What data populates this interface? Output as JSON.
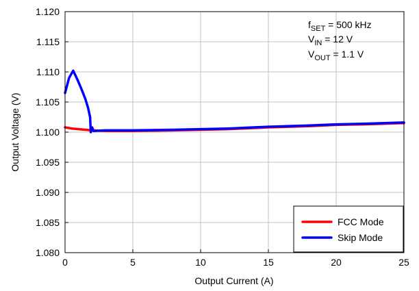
{
  "chart_data": {
    "type": "line",
    "xlabel": "Output Current (A)",
    "ylabel": "Output Voltage (V)",
    "xlim": [
      0,
      25
    ],
    "ylim": [
      1.08,
      1.12
    ],
    "x_ticks": [
      "0",
      "5",
      "10",
      "15",
      "20",
      "25"
    ],
    "y_ticks": [
      "1.080",
      "1.085",
      "1.090",
      "1.095",
      "1.100",
      "1.105",
      "1.110",
      "1.115",
      "1.120"
    ],
    "grid": true,
    "legend_position": "bottom-right",
    "annotation": {
      "line1": {
        "main": "f",
        "sub": "SET",
        "rest": " = 500 kHz"
      },
      "line2": {
        "main": "V",
        "sub": "IN",
        "rest": " = 12 V"
      },
      "line3": {
        "main": "V",
        "sub": "OUT",
        "rest": " = 1.1 V"
      }
    },
    "series": [
      {
        "name": "FCC Mode",
        "color": "#ff0000",
        "points": [
          [
            0,
            1.1008
          ],
          [
            0.5,
            1.1006
          ],
          [
            1.0,
            1.1005
          ],
          [
            1.5,
            1.1004
          ],
          [
            2.0,
            1.1003
          ],
          [
            3.0,
            1.1002
          ],
          [
            5.0,
            1.1002
          ],
          [
            8.0,
            1.1003
          ],
          [
            10.0,
            1.1004
          ],
          [
            12.0,
            1.1005
          ],
          [
            15.0,
            1.1008
          ],
          [
            18.0,
            1.101
          ],
          [
            20.0,
            1.1012
          ],
          [
            22.0,
            1.1013
          ],
          [
            25.0,
            1.1015
          ]
        ]
      },
      {
        "name": "Skip Mode",
        "color": "#0000ff",
        "points": [
          [
            0,
            1.1065
          ],
          [
            0.3,
            1.109
          ],
          [
            0.6,
            1.1102
          ],
          [
            0.9,
            1.1088
          ],
          [
            1.2,
            1.1072
          ],
          [
            1.5,
            1.1055
          ],
          [
            1.7,
            1.104
          ],
          [
            1.85,
            1.1025
          ],
          [
            1.9,
            1.1
          ],
          [
            2.0,
            1.1008
          ],
          [
            2.1,
            1.1002
          ],
          [
            3.0,
            1.1003
          ],
          [
            5.0,
            1.1003
          ],
          [
            8.0,
            1.1004
          ],
          [
            10.0,
            1.1005
          ],
          [
            12.0,
            1.1006
          ],
          [
            15.0,
            1.1009
          ],
          [
            18.0,
            1.1011
          ],
          [
            20.0,
            1.1013
          ],
          [
            22.0,
            1.1014
          ],
          [
            25.0,
            1.1016
          ]
        ]
      }
    ]
  }
}
